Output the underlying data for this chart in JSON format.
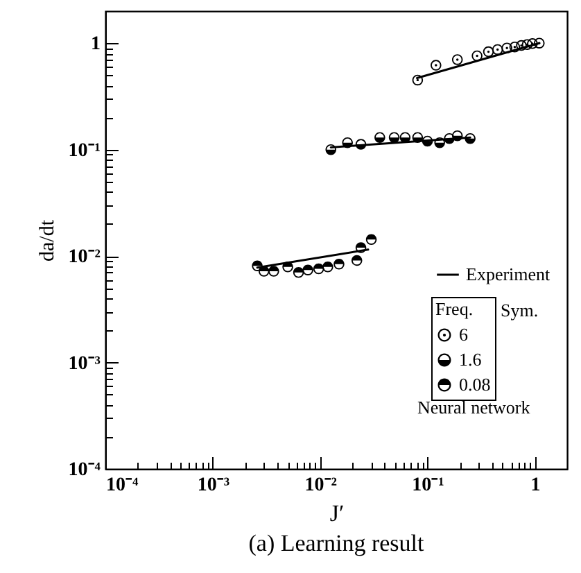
{
  "chart_data": {
    "type": "scatter",
    "title": "(a)  Learning result",
    "xlabel": "J′",
    "ylabel": "da/dt",
    "legend_title": "Freq.",
    "annotations": [
      "Sym.",
      "Neural network"
    ],
    "log": "xy",
    "grid": false,
    "legend": "bottom right",
    "marker": "circle",
    "xlim": [
      0.0001,
      2
    ],
    "ylim": [
      0.0001,
      2
    ],
    "xticks": [
      {
        "value": 0.0001,
        "label": "10⁻⁴"
      },
      {
        "value": 0.0002,
        "label": null
      },
      {
        "value": 0.0003,
        "label": null
      },
      {
        "value": 0.0004,
        "label": null
      },
      {
        "value": 0.0005,
        "label": null
      },
      {
        "value": 0.0006,
        "label": null
      },
      {
        "value": 0.0007,
        "label": null
      },
      {
        "value": 0.0008,
        "label": null
      },
      {
        "value": 0.0009,
        "label": null
      },
      {
        "value": 0.001,
        "label": "10⁻³"
      },
      {
        "value": 0.002,
        "label": null
      },
      {
        "value": 0.003,
        "label": null
      },
      {
        "value": 0.004,
        "label": null
      },
      {
        "value": 0.005,
        "label": null
      },
      {
        "value": 0.006,
        "label": null
      },
      {
        "value": 0.007,
        "label": null
      },
      {
        "value": 0.008,
        "label": null
      },
      {
        "value": 0.009,
        "label": null
      },
      {
        "value": 0.01,
        "label": "10⁻²"
      },
      {
        "value": 0.02,
        "label": null
      },
      {
        "value": 0.03,
        "label": null
      },
      {
        "value": 0.04,
        "label": null
      },
      {
        "value": 0.05,
        "label": null
      },
      {
        "value": 0.06,
        "label": null
      },
      {
        "value": 0.07,
        "label": null
      },
      {
        "value": 0.08,
        "label": null
      },
      {
        "value": 0.09,
        "label": null
      },
      {
        "value": 0.1,
        "label": "10⁻¹"
      },
      {
        "value": 0.2,
        "label": null
      },
      {
        "value": 0.3,
        "label": null
      },
      {
        "value": 0.4,
        "label": null
      },
      {
        "value": 0.5,
        "label": null
      },
      {
        "value": 0.6,
        "label": null
      },
      {
        "value": 0.7,
        "label": null
      },
      {
        "value": 0.8,
        "label": null
      },
      {
        "value": 0.9,
        "label": null
      },
      1
    ],
    "yticks": [
      {
        "value": 0.0001,
        "label": "10⁻⁴"
      },
      {
        "value": 0.0002,
        "label": null
      },
      {
        "value": 0.0003,
        "label": null
      },
      {
        "value": 0.0004,
        "label": null
      },
      {
        "value": 0.0005,
        "label": null
      },
      {
        "value": 0.0006,
        "label": null
      },
      {
        "value": 0.0007,
        "label": null
      },
      {
        "value": 0.0008,
        "label": null
      },
      {
        "value": 0.0009,
        "label": null
      },
      {
        "value": 0.001,
        "label": "10⁻³"
      },
      {
        "value": 0.002,
        "label": null
      },
      {
        "value": 0.003,
        "label": null
      },
      {
        "value": 0.004,
        "label": null
      },
      {
        "value": 0.005,
        "label": null
      },
      {
        "value": 0.006,
        "label": null
      },
      {
        "value": 0.007,
        "label": null
      },
      {
        "value": 0.008,
        "label": null
      },
      {
        "value": 0.009,
        "label": null
      },
      {
        "value": 0.01,
        "label": "10⁻²"
      },
      {
        "value": 0.02,
        "label": null
      },
      {
        "value": 0.03,
        "label": null
      },
      {
        "value": 0.04,
        "label": null
      },
      {
        "value": 0.05,
        "label": null
      },
      {
        "value": 0.06,
        "label": null
      },
      {
        "value": 0.07,
        "label": null
      },
      {
        "value": 0.08,
        "label": null
      },
      {
        "value": 0.09,
        "label": null
      },
      {
        "value": 0.1,
        "label": "10⁻¹"
      },
      {
        "value": 0.2,
        "label": null
      },
      {
        "value": 0.3,
        "label": null
      },
      {
        "value": 0.4,
        "label": null
      },
      {
        "value": 0.5,
        "label": null
      },
      {
        "value": 0.6,
        "label": null
      },
      {
        "value": 0.7,
        "label": null
      },
      {
        "value": 0.8,
        "label": null
      },
      {
        "value": 0.9,
        "label": null
      },
      1
    ],
    "series": [
      {
        "name": "6",
        "color": "#000000",
        "x": [
          0.081,
          0.12,
          0.19,
          0.29,
          0.37,
          0.45,
          0.55,
          0.65,
          0.75,
          0.85,
          0.95,
          1.1
        ],
        "values": [
          0.45,
          0.62,
          0.7,
          0.76,
          0.83,
          0.87,
          0.9,
          0.92,
          0.95,
          0.97,
          0.99,
          1.0
        ]
      },
      {
        "name": "1.6",
        "color": "#000000",
        "x": [
          0.0126,
          0.018,
          0.024,
          0.036,
          0.049,
          0.062,
          0.081,
          0.1,
          0.13,
          0.16,
          0.19,
          0.25
        ],
        "values": [
          0.1,
          0.116,
          0.112,
          0.13,
          0.13,
          0.13,
          0.13,
          0.12,
          0.116,
          0.127,
          0.135,
          0.127
        ]
      },
      {
        "name": "0.08",
        "color": "#000000",
        "x": [
          0.0026,
          0.003,
          0.0037,
          0.005,
          0.0063,
          0.0077,
          0.0097,
          0.0118,
          0.015,
          0.022,
          0.024,
          0.03
        ],
        "values": [
          0.0081,
          0.0072,
          0.0072,
          0.0079,
          0.007,
          0.0074,
          0.0076,
          0.0079,
          0.0084,
          0.0091,
          0.012,
          0.0143
        ]
      },
      {
        "name": "Experiment",
        "type": "line",
        "marker": "none",
        "color": "#000000",
        "line_style": "solid",
        "x": [
          0.0026,
          0.028,
          null,
          0.0126,
          0.25,
          null,
          0.08,
          1.1
        ],
        "values": [
          0.0078,
          0.0115,
          null,
          0.105,
          0.13,
          null,
          0.47,
          1.0
        ]
      }
    ]
  }
}
